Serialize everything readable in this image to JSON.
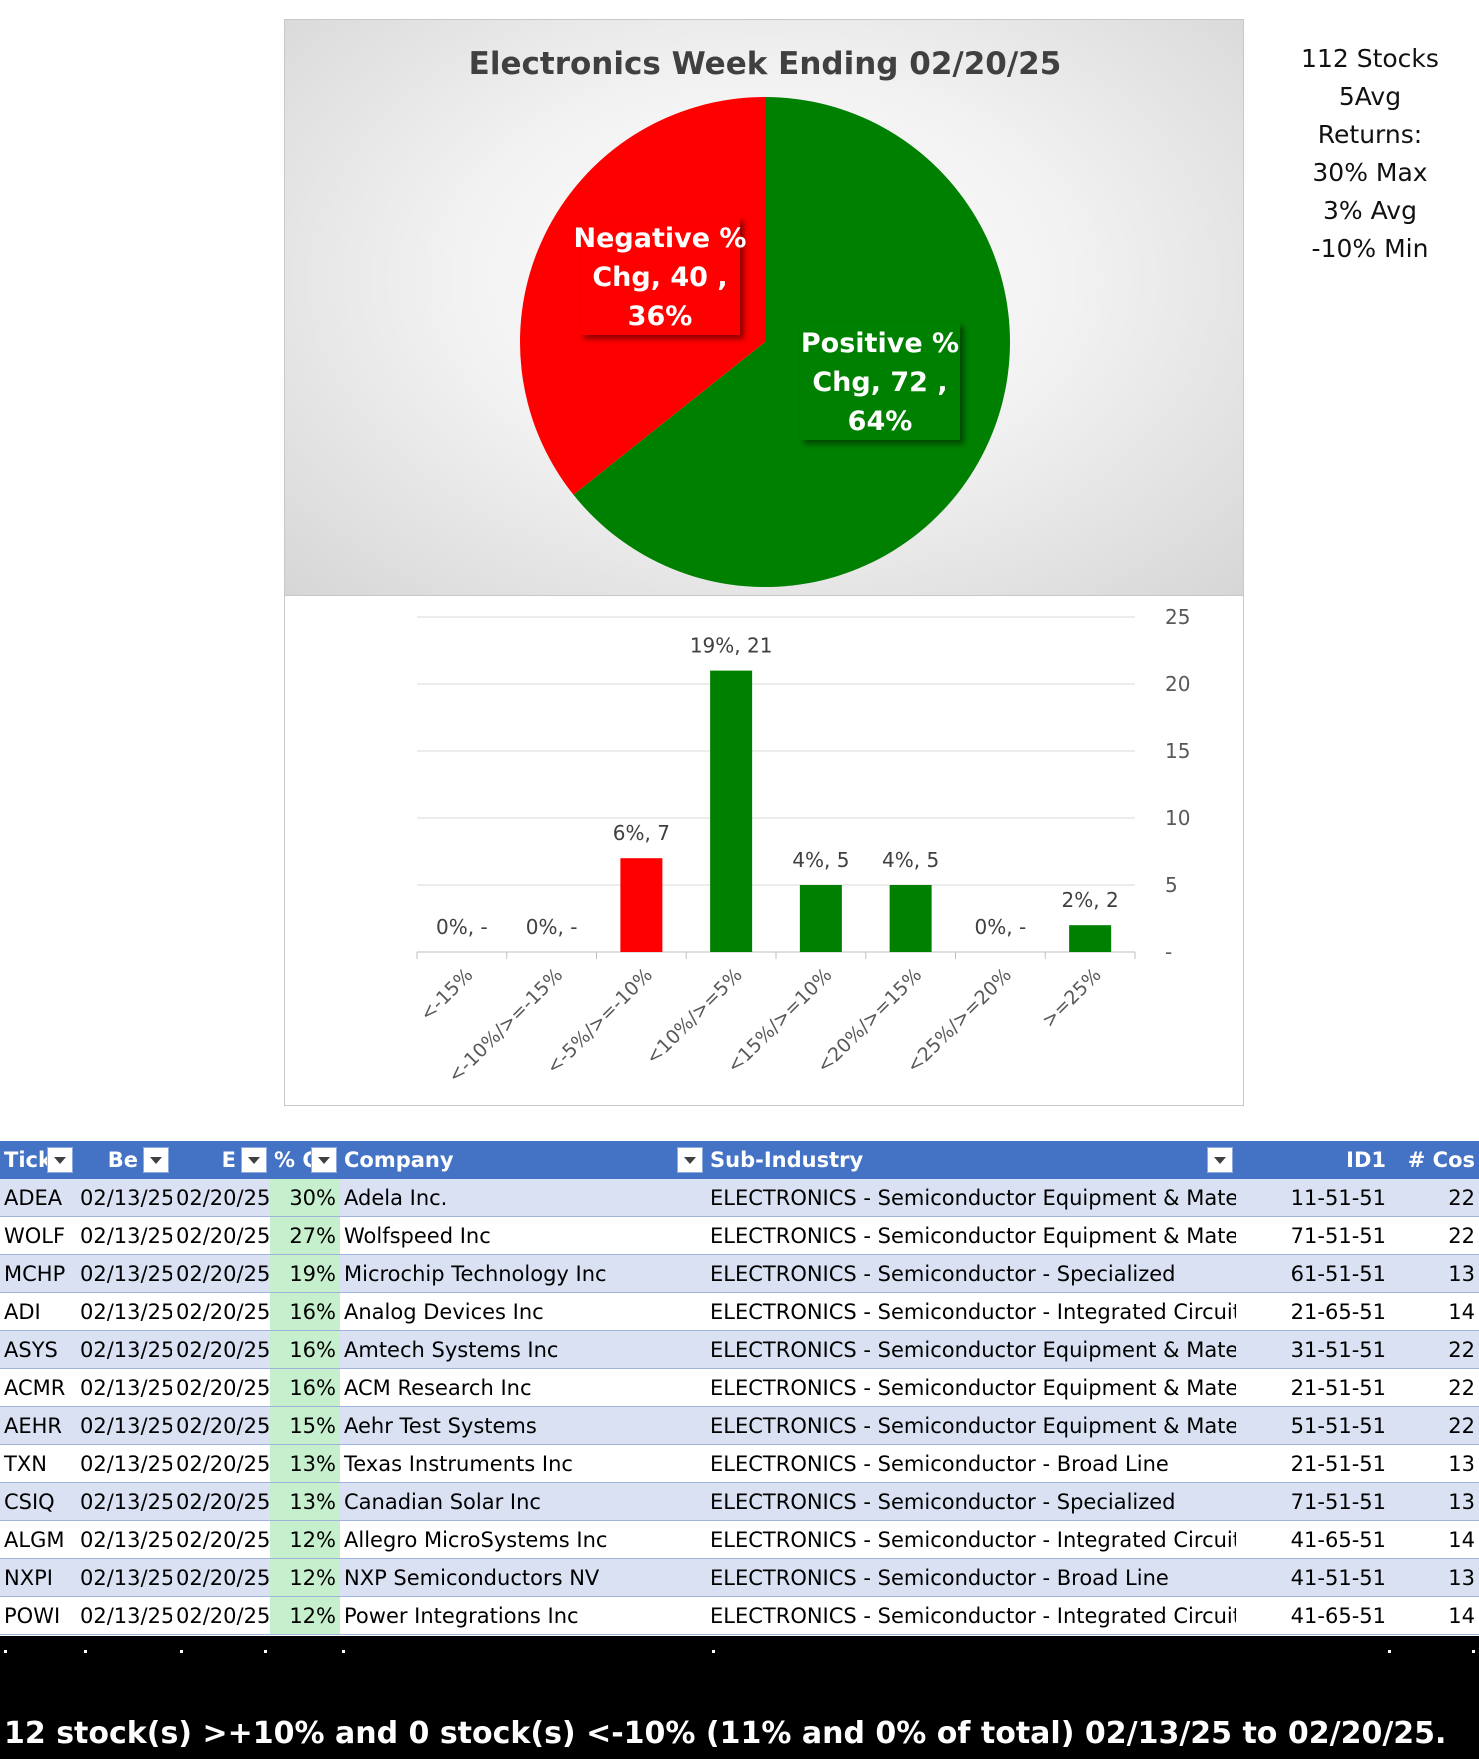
{
  "chart_data": [
    {
      "type": "pie",
      "title": "Electronics Week Ending 02/20/25",
      "slices": [
        {
          "name": "Negative % Chg",
          "value": 40,
          "percent": "36%",
          "color": "#ff0000",
          "label_line1": "Negative %",
          "label_line2": "Chg,  40 ,",
          "label_line3": "36%"
        },
        {
          "name": "Positive % Chg",
          "value": 72,
          "percent": "64%",
          "color": "#008000",
          "label_line1": "Positive %",
          "label_line2": "Chg,  72 ,",
          "label_line3": "64%"
        }
      ]
    },
    {
      "type": "bar",
      "categories": [
        "<-15%",
        "<-10%/>=-15%",
        "<-5%/>=-10%",
        "<10%/>=5%",
        "<15%/>=10%",
        "<20%/>=15%",
        "<25%/>=20%",
        ">=25%"
      ],
      "values": [
        0,
        0,
        7,
        21,
        5,
        5,
        0,
        2
      ],
      "data_labels": [
        "0%,  -",
        "0%,  -",
        "6%,  7",
        "19%,  21",
        "4%,  5",
        "4%,  5",
        "0%,  -",
        "2%,  2"
      ],
      "colors": [
        "#ff0000",
        "#ff0000",
        "#ff0000",
        "#008000",
        "#008000",
        "#008000",
        "#008000",
        "#008000"
      ],
      "ylim": [
        0,
        25
      ],
      "yticks": [
        0,
        5,
        10,
        15,
        20,
        25
      ],
      "ytick_labels": [
        "-",
        "5",
        "10",
        "15",
        "20",
        "25"
      ],
      "y_axis_side": "right",
      "grid": true
    }
  ],
  "side_stats": [
    "112 Stocks",
    "5Avg",
    "Returns:",
    "30% Max",
    "3% Avg",
    "-10% Min"
  ],
  "table": {
    "headers": [
      "Tick",
      "Be",
      "E",
      "% C",
      "Company",
      "Sub-Industry",
      "ID1",
      "# Cos"
    ],
    "rows": [
      [
        "ADEA",
        "02/13/25",
        "02/20/25",
        "30%",
        "Adela Inc.",
        "ELECTRONICS - Semiconductor Equipment & Materials",
        "11-51-51",
        "22"
      ],
      [
        "WOLF",
        "02/13/25",
        "02/20/25",
        "27%",
        "Wolfspeed Inc",
        "ELECTRONICS - Semiconductor Equipment & Materials",
        "71-51-51",
        "22"
      ],
      [
        "MCHP",
        "02/13/25",
        "02/20/25",
        "19%",
        "Microchip Technology Inc",
        "ELECTRONICS - Semiconductor - Specialized",
        "61-51-51",
        "13"
      ],
      [
        "ADI",
        "02/13/25",
        "02/20/25",
        "16%",
        "Analog Devices Inc",
        "ELECTRONICS - Semiconductor - Integrated Circuits",
        "21-65-51",
        "14"
      ],
      [
        "ASYS",
        "02/13/25",
        "02/20/25",
        "16%",
        "Amtech Systems Inc",
        "ELECTRONICS - Semiconductor Equipment & Materials",
        "31-51-51",
        "22"
      ],
      [
        "ACMR",
        "02/13/25",
        "02/20/25",
        "16%",
        "ACM Research Inc",
        "ELECTRONICS - Semiconductor Equipment & Materials",
        "21-51-51",
        "22"
      ],
      [
        "AEHR",
        "02/13/25",
        "02/20/25",
        "15%",
        "Aehr Test Systems",
        "ELECTRONICS - Semiconductor Equipment & Materials",
        "51-51-51",
        "22"
      ],
      [
        "TXN",
        "02/13/25",
        "02/20/25",
        "13%",
        "Texas Instruments Inc",
        "ELECTRONICS - Semiconductor - Broad Line",
        "21-51-51",
        "13"
      ],
      [
        "CSIQ",
        "02/13/25",
        "02/20/25",
        "13%",
        "Canadian Solar Inc",
        "ELECTRONICS - Semiconductor - Specialized",
        "71-51-51",
        "13"
      ],
      [
        "ALGM",
        "02/13/25",
        "02/20/25",
        "12%",
        "Allegro MicroSystems Inc",
        "ELECTRONICS - Semiconductor - Integrated Circuits",
        "41-65-51",
        "14"
      ],
      [
        "NXPI",
        "02/13/25",
        "02/20/25",
        "12%",
        "NXP Semiconductors NV",
        "ELECTRONICS - Semiconductor - Broad Line",
        "41-51-51",
        "13"
      ],
      [
        "POWI",
        "02/13/25",
        "02/20/25",
        "12%",
        "Power Integrations Inc",
        "ELECTRONICS - Semiconductor - Integrated Circuits",
        "41-65-51",
        "14"
      ]
    ]
  },
  "summary": "12 stock(s) >+10% and 0 stock(s) <-10% (11% and 0% of total) 02/13/25 to 02/20/25."
}
